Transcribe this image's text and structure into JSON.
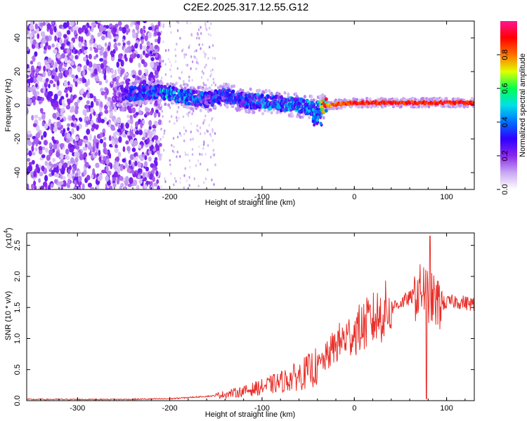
{
  "title": "C2E2.2025.317.12.55.G12",
  "chart_data": [
    {
      "type": "heatmap",
      "xlabel": "Height of straight line (km)",
      "ylabel": "Frequency (Hz)",
      "xlim": [
        -355,
        130
      ],
      "ylim": [
        -50,
        50
      ],
      "xticks": [
        -300,
        -200,
        -100,
        0,
        100
      ],
      "yticks": [
        -40,
        -20,
        0,
        20,
        40
      ],
      "colorbar": {
        "label": "Normalized spectral amplitude",
        "range": [
          0,
          1
        ],
        "ticks": [
          "0.0",
          "0.2",
          "0.4",
          "0.6",
          "0.8"
        ],
        "colors": [
          "#ffffff",
          "#c9a8f2",
          "#8a28ec",
          "#2e00ff",
          "#0070ff",
          "#00e0e8",
          "#00ff50",
          "#e0ff00",
          "#ff7000",
          "#ff0000",
          "#ff1493"
        ]
      },
      "ridge": [
        {
          "x": -260,
          "y": 6,
          "amp": 0.15
        },
        {
          "x": -240,
          "y": 7,
          "amp": 0.3
        },
        {
          "x": -220,
          "y": 8,
          "amp": 0.35
        },
        {
          "x": -200,
          "y": 7,
          "amp": 0.4
        },
        {
          "x": -180,
          "y": 5,
          "amp": 0.35
        },
        {
          "x": -160,
          "y": 3,
          "amp": 0.3
        },
        {
          "x": -140,
          "y": 6,
          "amp": 0.3
        },
        {
          "x": -120,
          "y": 3,
          "amp": 0.3
        },
        {
          "x": -100,
          "y": 2,
          "amp": 0.35
        },
        {
          "x": -80,
          "y": 1,
          "amp": 0.35
        },
        {
          "x": -60,
          "y": 0,
          "amp": 0.4
        },
        {
          "x": -40,
          "y": -2,
          "amp": 0.35
        },
        {
          "x": -30,
          "y": 0,
          "amp": 0.8
        },
        {
          "x": 0,
          "y": 1.5,
          "amp": 0.9
        },
        {
          "x": 50,
          "y": 1.5,
          "amp": 0.9
        },
        {
          "x": 100,
          "y": 1.5,
          "amp": 0.9
        },
        {
          "x": 130,
          "y": 1.5,
          "amp": 0.9
        }
      ]
    },
    {
      "type": "line",
      "xlabel": "Height of straight line (km)",
      "ylabel": "SNR (10 * v/v)",
      "yscale_label": "(x10",
      "yscale_exponent": "4",
      "xlim": [
        -355,
        130
      ],
      "ylim": [
        0,
        2.7
      ],
      "xticks": [
        -300,
        -200,
        -100,
        0,
        100
      ],
      "yticks": [
        "0.0",
        "0.5",
        "1.0",
        "1.5",
        "2.0",
        "2.5"
      ],
      "color": "#e8302a",
      "envelope": [
        {
          "x": -355,
          "y": 0.02
        },
        {
          "x": -250,
          "y": 0.02
        },
        {
          "x": -200,
          "y": 0.03
        },
        {
          "x": -150,
          "y": 0.08
        },
        {
          "x": -120,
          "y": 0.15
        },
        {
          "x": -100,
          "y": 0.22
        },
        {
          "x": -80,
          "y": 0.3
        },
        {
          "x": -60,
          "y": 0.4
        },
        {
          "x": -40,
          "y": 0.55
        },
        {
          "x": -30,
          "y": 0.7
        },
        {
          "x": -20,
          "y": 0.9
        },
        {
          "x": 0,
          "y": 1.1
        },
        {
          "x": 20,
          "y": 1.3
        },
        {
          "x": 40,
          "y": 1.5
        },
        {
          "x": 60,
          "y": 1.65
        },
        {
          "x": 75,
          "y": 1.8
        },
        {
          "x": 80,
          "y": 1.7
        },
        {
          "x": 90,
          "y": 1.55
        },
        {
          "x": 110,
          "y": 1.6
        },
        {
          "x": 130,
          "y": 1.55
        }
      ],
      "peak": {
        "x": 82,
        "y": 2.65
      },
      "dip": {
        "x": 78,
        "y": 0.03
      }
    }
  ]
}
